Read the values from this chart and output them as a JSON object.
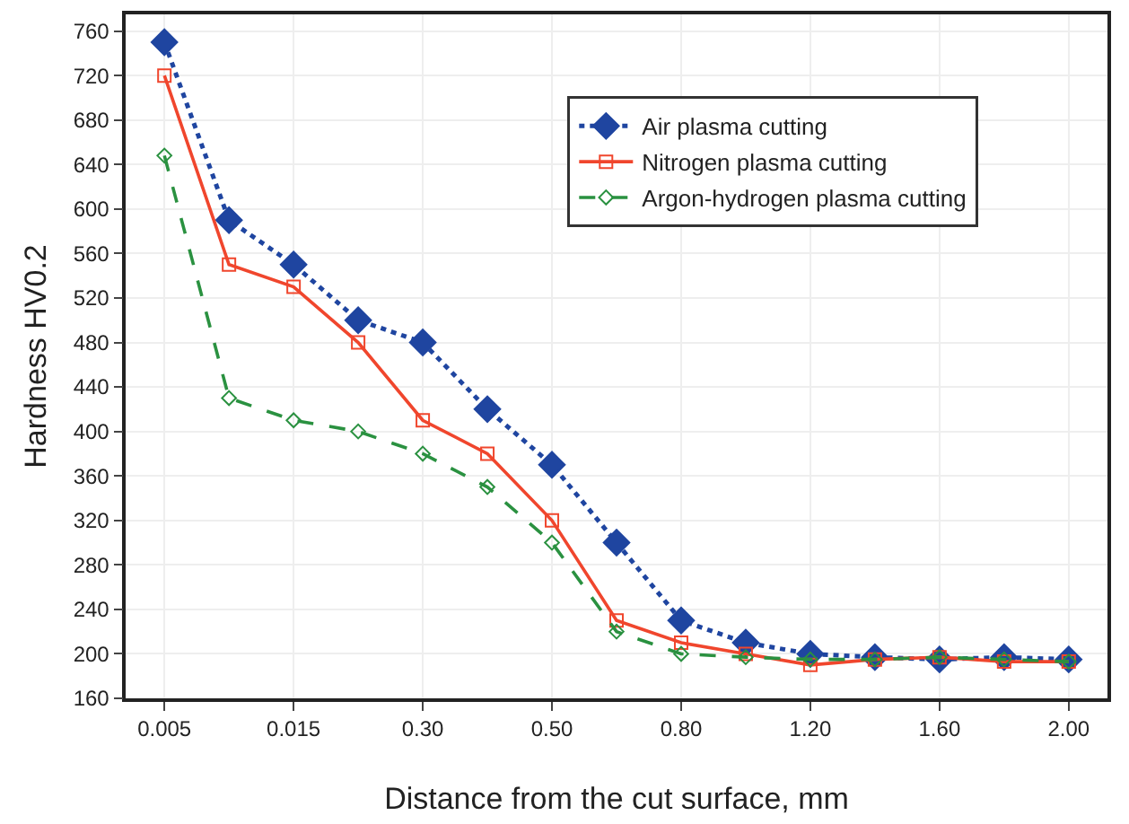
{
  "chart_data": {
    "type": "line",
    "xlabel": "Distance from the cut surface, mm",
    "ylabel": "Hardness HV0.2",
    "categories": [
      "0.005",
      null,
      "0.015",
      null,
      "0.30",
      null,
      "0.50",
      null,
      "0.80",
      null,
      "1.20",
      null,
      "1.60",
      null,
      "2.00"
    ],
    "series": [
      {
        "name": "Air plasma cutting",
        "color": "#1f45a0",
        "marker": "diamond",
        "line_style": "dotted",
        "values": [
          750,
          590,
          550,
          500,
          480,
          420,
          370,
          300,
          230,
          210,
          200,
          197,
          195,
          197,
          195
        ]
      },
      {
        "name": "Nitrogen plasma cutting",
        "color": "#f0462d",
        "marker": "square",
        "line_style": "solid",
        "values": [
          720,
          550,
          530,
          480,
          410,
          380,
          320,
          230,
          210,
          200,
          190,
          195,
          197,
          193,
          193
        ]
      },
      {
        "name": "Argon-hydrogen plasma cutting",
        "color": "#2a9140",
        "marker": "diamond",
        "line_style": "dashed",
        "values": [
          648,
          430,
          410,
          400,
          380,
          350,
          300,
          220,
          200,
          197,
          195,
          195,
          197,
          195,
          193
        ]
      }
    ],
    "ylim": [
      160,
      775
    ],
    "yticks": [
      160,
      200,
      240,
      280,
      320,
      360,
      400,
      440,
      480,
      520,
      560,
      600,
      640,
      680,
      720,
      760
    ],
    "grid": true,
    "legend": "top right"
  }
}
